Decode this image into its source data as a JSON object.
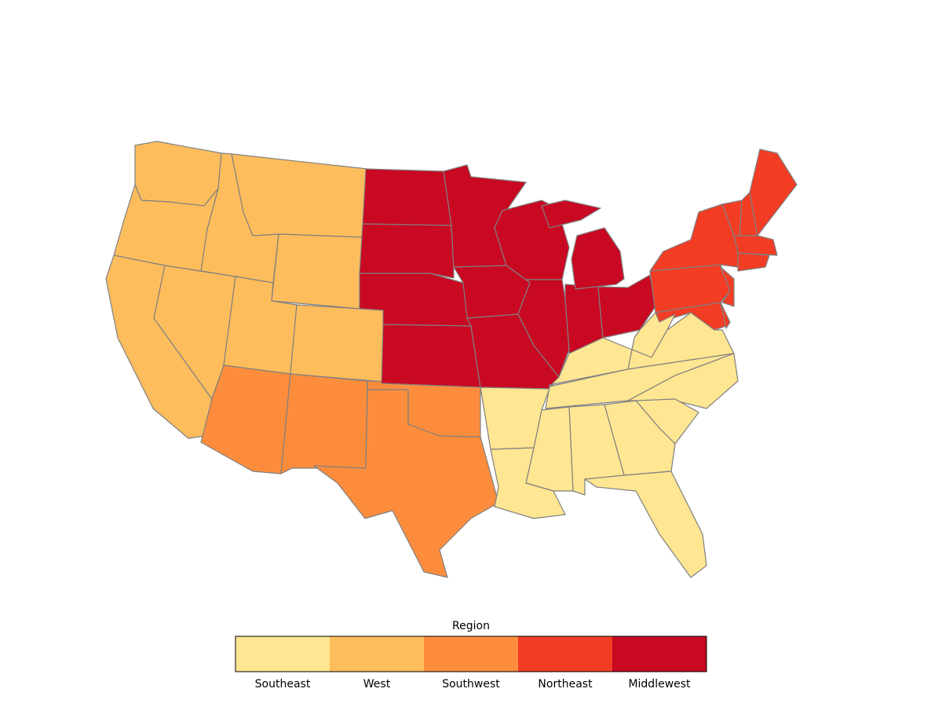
{
  "legend": {
    "title": "Region",
    "categories": [
      {
        "name": "Southeast",
        "color": "#ffe692"
      },
      {
        "name": "West",
        "color": "#febd5c"
      },
      {
        "name": "Southwest",
        "color": "#fd8d3c"
      },
      {
        "name": "Northeast",
        "color": "#f33c24"
      },
      {
        "name": "Middlewest",
        "color": "#c90822"
      }
    ]
  }
}
